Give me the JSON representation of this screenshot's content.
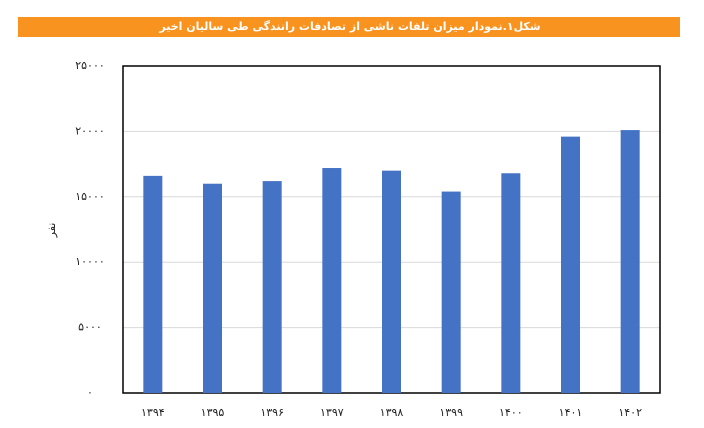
{
  "chart_data": {
    "type": "bar",
    "title": "شکل۱.نمودار میزان تلفات ناشی از تصادفات رانندگی طی سالیان اخیر",
    "y_label": "نفر",
    "categories": [
      "۱۳۹۴",
      "۱۳۹۵",
      "۱۳۹۶",
      "۱۳۹۷",
      "۱۳۹۸",
      "۱۳۹۹",
      "۱۴۰۰",
      "۱۴۰۱",
      "۱۴۰۲"
    ],
    "values": [
      16600,
      16000,
      16200,
      17200,
      17000,
      15400,
      16800,
      19600,
      20100
    ],
    "color": "#4472c4",
    "ylim": [
      0,
      25000
    ],
    "yticks": [
      {
        "value": 0,
        "label": "۰"
      },
      {
        "value": 5000,
        "label": "۵۰۰۰"
      },
      {
        "value": 10000,
        "label": "۱۰۰۰۰"
      },
      {
        "value": 15000,
        "label": "۱۵۰۰۰"
      },
      {
        "value": 20000,
        "label": "۲۰۰۰۰"
      },
      {
        "value": 25000,
        "label": "۲۵۰۰۰"
      }
    ],
    "grid": true
  }
}
